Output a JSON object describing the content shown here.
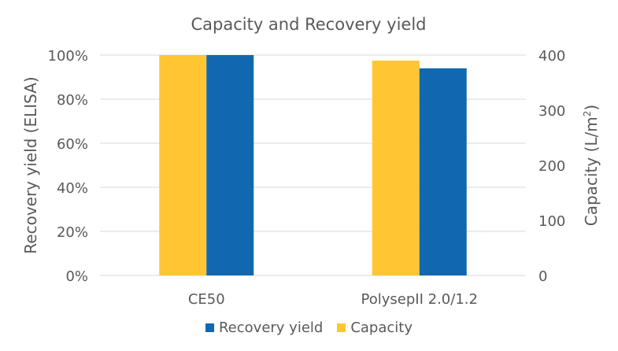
{
  "chart_data": {
    "type": "bar",
    "title": "Capacity and Recovery yield",
    "categories": [
      "CE50",
      "PolysepII 2.0/1.2"
    ],
    "series": [
      {
        "name": "Capacity",
        "axis": "right",
        "values": [
          400,
          390
        ],
        "color": "#FFC634"
      },
      {
        "name": "Recovery yield",
        "axis": "left",
        "values": [
          100,
          94
        ],
        "color": "#1068B0"
      }
    ],
    "y_left": {
      "label": "Recovery yield (ELISA)",
      "ylim": [
        0,
        100
      ],
      "ticks": [
        0,
        20,
        40,
        60,
        80,
        100
      ],
      "tick_labels": [
        "0%",
        "20%",
        "40%",
        "60%",
        "80%",
        "100%"
      ]
    },
    "y_right": {
      "label_main": "Capacity (L/m",
      "label_sup": "2",
      "label_end": ")",
      "ylim": [
        0,
        400
      ],
      "ticks": [
        0,
        100,
        200,
        300,
        400
      ],
      "tick_labels": [
        "0",
        "100",
        "200",
        "300",
        "400"
      ]
    },
    "grid": true,
    "legend": {
      "position": "bottom",
      "entries": [
        {
          "label": "Recovery yield",
          "color": "#1068B0"
        },
        {
          "label": "Capacity",
          "color": "#FFC634"
        }
      ]
    }
  }
}
